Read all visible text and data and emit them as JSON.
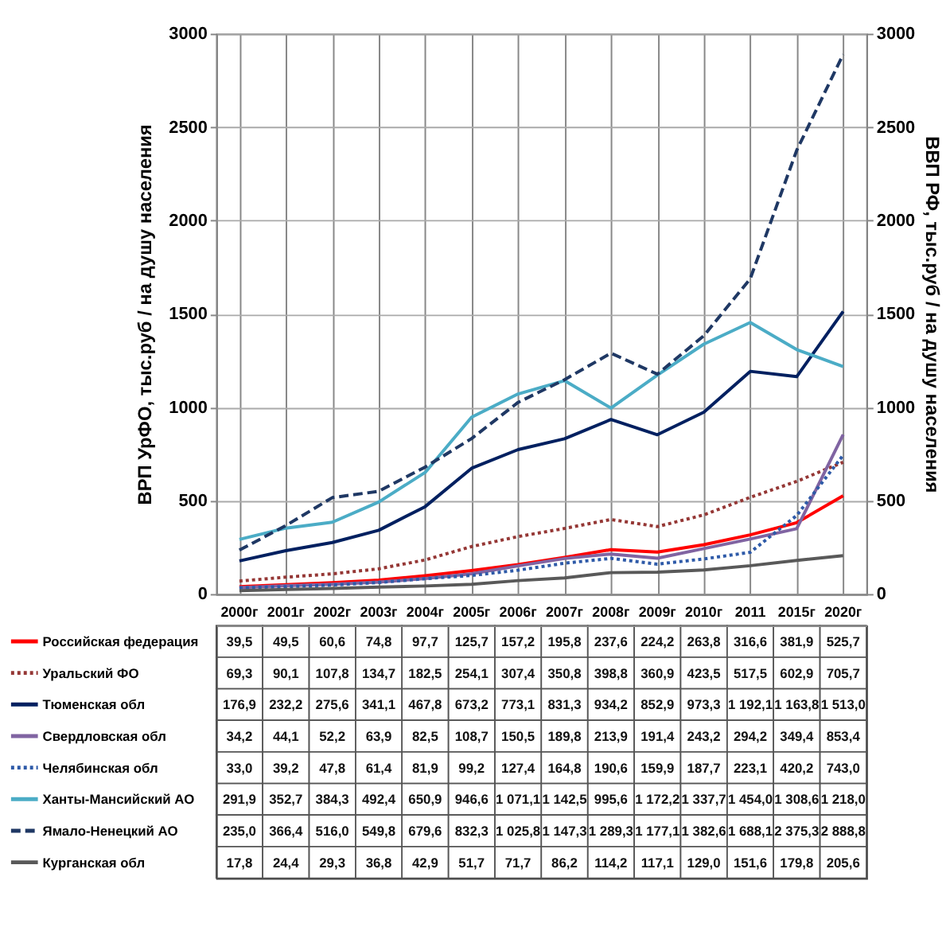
{
  "chart_data": {
    "type": "line",
    "ylabel": "ВРП УрФО, тыс.руб / на душу населения",
    "y2label": "ВВП РФ, тыс.руб / на душу населения",
    "categories": [
      "2000г",
      "2001г",
      "2002г",
      "2003г",
      "2004г",
      "2005г",
      "2006г",
      "2007г",
      "2008г",
      "2009г",
      "2010г",
      "2011",
      "2015г",
      "2020г"
    ],
    "ylim": [
      0,
      3000
    ],
    "yticks": [
      0,
      500,
      1000,
      1500,
      2000,
      2500,
      3000
    ],
    "y2lim": [
      0,
      3000
    ],
    "y2ticks": [
      0,
      500,
      1000,
      1500,
      2000,
      2500,
      3000
    ],
    "grid": true,
    "legend": "bottom left",
    "marker": "none",
    "series": [
      {
        "name": "Российская федерация",
        "color": "#ff0000",
        "line_style": "solid",
        "values": [
          39.5,
          49.5,
          60.6,
          74.8,
          97.7,
          125.7,
          157.2,
          195.8,
          237.6,
          224.2,
          263.8,
          316.6,
          381.9,
          525.7
        ],
        "value_labels": [
          "39,5",
          "49,5",
          "60,6",
          "74,8",
          "97,7",
          "125,7",
          "157,2",
          "195,8",
          "237,6",
          "224,2",
          "263,8",
          "316,6",
          "381,9",
          "525,7"
        ]
      },
      {
        "name": "Уральский ФО",
        "color": "#953735",
        "line_style": "dotted",
        "values": [
          69.3,
          90.1,
          107.8,
          134.7,
          182.5,
          254.1,
          307.4,
          350.8,
          398.8,
          360.9,
          423.5,
          517.5,
          602.9,
          705.7
        ],
        "value_labels": [
          "69,3",
          "90,1",
          "107,8",
          "134,7",
          "182,5",
          "254,1",
          "307,4",
          "350,8",
          "398,8",
          "360,9",
          "423,5",
          "517,5",
          "602,9",
          "705,7"
        ]
      },
      {
        "name": "Тюменская обл",
        "color": "#002060",
        "line_style": "solid",
        "values": [
          176.9,
          232.2,
          275.6,
          341.1,
          467.8,
          673.2,
          773.1,
          831.3,
          934.2,
          852.9,
          973.3,
          1192.1,
          1163.8,
          1513.0
        ],
        "value_labels": [
          "176,9",
          "232,2",
          "275,6",
          "341,1",
          "467,8",
          "673,2",
          "773,1",
          "831,3",
          "934,2",
          "852,9",
          "973,3",
          "1 192,1",
          "1 163,8",
          "1 513,0"
        ]
      },
      {
        "name": "Свердловская обл",
        "color": "#8064a2",
        "line_style": "solid",
        "values": [
          34.2,
          44.1,
          52.2,
          63.9,
          82.5,
          108.7,
          150.5,
          189.8,
          213.9,
          191.4,
          243.2,
          294.2,
          349.4,
          853.4
        ],
        "value_labels": [
          "34,2",
          "44,1",
          "52,2",
          "63,9",
          "82,5",
          "108,7",
          "150,5",
          "189,8",
          "213,9",
          "191,4",
          "243,2",
          "294,2",
          "349,4",
          "853,4"
        ]
      },
      {
        "name": "Челябинская обл",
        "color": "#2e5aa8",
        "line_style": "dotted",
        "values": [
          33.0,
          39.2,
          47.8,
          61.4,
          81.9,
          99.2,
          127.4,
          164.8,
          190.6,
          159.9,
          187.7,
          223.1,
          420.2,
          743.0
        ],
        "value_labels": [
          "33,0",
          "39,2",
          "47,8",
          "61,4",
          "81,9",
          "99,2",
          "127,4",
          "164,8",
          "190,6",
          "159,9",
          "187,7",
          "223,1",
          "420,2",
          "743,0"
        ]
      },
      {
        "name": "Ханты-Мансийский АО",
        "color": "#4bacc6",
        "line_style": "solid",
        "values": [
          291.9,
          352.7,
          384.3,
          492.4,
          650.9,
          946.6,
          1071.1,
          1142.5,
          995.6,
          1172.2,
          1337.7,
          1454.0,
          1308.6,
          1218.0
        ],
        "value_labels": [
          "291,9",
          "352,7",
          "384,3",
          "492,4",
          "650,9",
          "946,6",
          "1 071,1",
          "1 142,5",
          "995,6",
          "1 172,2",
          "1 337,7",
          "1 454,0",
          "1 308,6",
          "1 218,0"
        ]
      },
      {
        "name": "Ямало-Ненецкий АО",
        "color": "#1f3864",
        "line_style": "dashed",
        "values": [
          235.0,
          366.4,
          516.0,
          549.8,
          679.6,
          832.3,
          1025.8,
          1147.3,
          1289.3,
          1177.1,
          1382.6,
          1688.1,
          2375.3,
          2888.8
        ],
        "value_labels": [
          "235,0",
          "366,4",
          "516,0",
          "549,8",
          "679,6",
          "832,3",
          "1 025,8",
          "1 147,3",
          "1 289,3",
          "1 177,1",
          "1 382,6",
          "1 688,1",
          "2 375,3",
          "2 888,8"
        ]
      },
      {
        "name": "Курганская обл",
        "color": "#595959",
        "line_style": "solid",
        "values": [
          17.8,
          24.4,
          29.3,
          36.8,
          42.9,
          51.7,
          71.7,
          86.2,
          114.2,
          117.1,
          129.0,
          151.6,
          179.8,
          205.6
        ],
        "value_labels": [
          "17,8",
          "24,4",
          "29,3",
          "36,8",
          "42,9",
          "51,7",
          "71,7",
          "86,2",
          "114,2",
          "117,1",
          "129,0",
          "151,6",
          "179,8",
          "205,6"
        ]
      }
    ]
  }
}
